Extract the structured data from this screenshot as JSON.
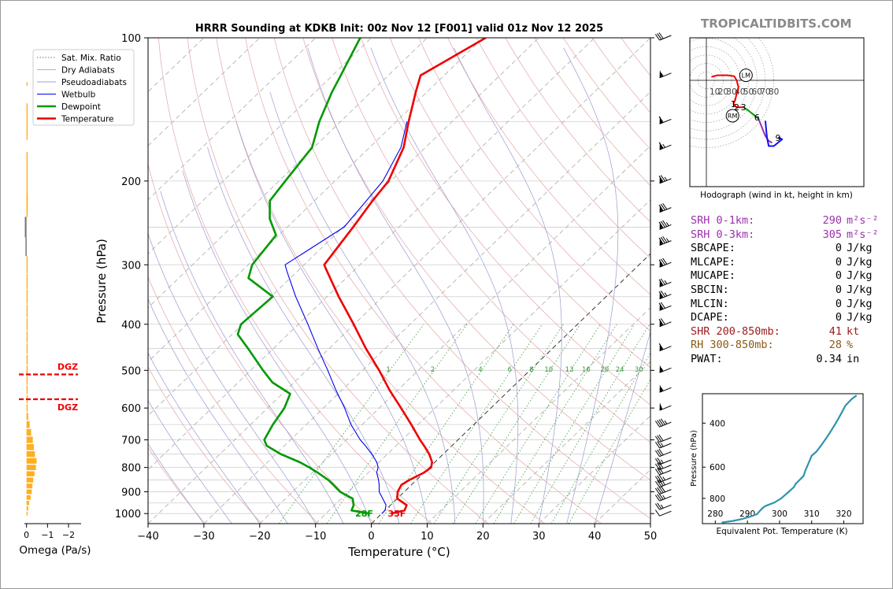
{
  "branding": "TROPICALTIDBITS.COM",
  "chart_data": [
    {
      "type": "line",
      "subtype": "skew-t log-p sounding",
      "title": "HRRR Sounding at KDKB Init: 00z Nov 12 [F001] valid 01z Nov 12 2025",
      "xlabel": "Temperature (°C)",
      "ylabel": "Pressure (hPa)",
      "xlim": [
        -40,
        50
      ],
      "ylim": [
        1050,
        100
      ],
      "y_scale": "log",
      "x_ticks": [
        -40,
        -30,
        -20,
        -10,
        0,
        10,
        20,
        30,
        40,
        50
      ],
      "x_tick_labels": [
        "−40",
        "−30",
        "−20",
        "−10",
        "0",
        "10",
        "20",
        "30",
        "40",
        "50"
      ],
      "y_ticks": [
        1000,
        900,
        800,
        700,
        600,
        500,
        400,
        300,
        200,
        100
      ],
      "grid": true,
      "legend": {
        "placement": "top-left",
        "entries": [
          {
            "name": "Sat. Mix. Ratio",
            "color": "#2ca02c",
            "style": "dotted"
          },
          {
            "name": "Dry Adiabats",
            "color": "#e0a0a0",
            "style": "solid"
          },
          {
            "name": "Pseudoadiabats",
            "color": "#a0a0d0",
            "style": "solid"
          },
          {
            "name": "Wetbulb",
            "color": "#0000ee",
            "style": "solid"
          },
          {
            "name": "Dewpoint",
            "color": "#009900",
            "style": "solid"
          },
          {
            "name": "Temperature",
            "color": "#ee0000",
            "style": "solid"
          }
        ]
      },
      "mixing_ratio_labels": [
        "1",
        "2",
        "4",
        "6",
        "8",
        "10",
        "13",
        "16",
        "20",
        "24",
        "30",
        "36"
      ],
      "mixing_ratio_values": [
        1,
        2,
        4,
        6,
        8,
        10,
        13,
        16,
        20,
        24,
        30,
        36
      ],
      "series": [
        {
          "name": "Temperature",
          "color": "#ee0000",
          "pressure": [
            1000,
            985,
            960,
            930,
            900,
            870,
            850,
            820,
            800,
            780,
            750,
            720,
            700,
            650,
            600,
            550,
            500,
            450,
            400,
            350,
            310,
            300,
            250,
            220,
            200,
            170,
            150,
            130,
            120,
            100
          ],
          "temperature": [
            1.7,
            3.5,
            2.9,
            0.0,
            -1.2,
            -1.8,
            -1.3,
            0.0,
            0.3,
            -0.5,
            -2.5,
            -5.0,
            -6.8,
            -11.2,
            -16.1,
            -21.5,
            -27.0,
            -33.4,
            -40.1,
            -47.9,
            -54.6,
            -56.4,
            -58.2,
            -59.6,
            -60.4,
            -63.9,
            -67.8,
            -72.0,
            -74.2,
            -69.5
          ]
        },
        {
          "name": "Dewpoint",
          "color": "#009900",
          "pressure": [
            1000,
            985,
            960,
            930,
            900,
            870,
            850,
            820,
            800,
            780,
            750,
            720,
            700,
            650,
            600,
            560,
            530,
            500,
            450,
            420,
            400,
            350,
            320,
            300,
            260,
            240,
            220,
            200,
            170,
            150,
            130,
            120,
            100
          ],
          "temperature": [
            -2.3,
            -6.0,
            -6.6,
            -8.0,
            -11.5,
            -14.0,
            -15.8,
            -19.1,
            -21.5,
            -24.2,
            -29.1,
            -33.2,
            -34.7,
            -36.0,
            -37.0,
            -38.6,
            -43.9,
            -47.8,
            -54.5,
            -59.0,
            -60.3,
            -59.7,
            -67.5,
            -69.3,
            -70.5,
            -74.7,
            -78.0,
            -78.9,
            -80.3,
            -83.8,
            -87.0,
            -88.5,
            -92.0
          ]
        },
        {
          "name": "Wetbulb",
          "color": "#0000ee",
          "pressure": [
            1000,
            985,
            960,
            930,
            900,
            870,
            850,
            820,
            800,
            780,
            750,
            720,
            700,
            650,
            600,
            550,
            500,
            450,
            400,
            350,
            310,
            300,
            250,
            220,
            200,
            170,
            150
          ],
          "temperature": [
            0.0,
            0.0,
            -0.8,
            -2.6,
            -4.5,
            -5.8,
            -6.8,
            -8.5,
            -9.2,
            -10.4,
            -12.8,
            -15.5,
            -17.5,
            -22.0,
            -26.2,
            -31.1,
            -36.2,
            -42.0,
            -48.3,
            -55.6,
            -61.8,
            -63.4,
            -59.8,
            -60.7,
            -61.4,
            -64.4,
            -68.1
          ]
        }
      ],
      "annotations": [
        {
          "text": "28F",
          "color": "#009900"
        },
        {
          "text": "35F",
          "color": "#ee0000"
        }
      ],
      "wind_barbs": {
        "pressure": [
          1000,
          970,
          930,
          900,
          870,
          850,
          820,
          800,
          780,
          750,
          720,
          700,
          650,
          600,
          550,
          500,
          450,
          400,
          370,
          350,
          330,
          300,
          270,
          250,
          230,
          200,
          170,
          150,
          120,
          100
        ],
        "speed_kt": [
          10,
          25,
          35,
          40,
          35,
          35,
          30,
          30,
          25,
          30,
          25,
          30,
          45,
          50,
          55,
          55,
          60,
          70,
          70,
          75,
          75,
          80,
          85,
          85,
          80,
          75,
          65,
          60,
          55,
          30
        ]
      }
    },
    {
      "type": "bar",
      "subtype": "vertical profile",
      "xlabel": "Omega (Pa/s)",
      "x_tick_labels": [
        "0",
        "−1",
        "−2"
      ],
      "xlim": [
        0.1,
        -2.6
      ],
      "levels_hpa": [
        1000,
        975,
        950,
        925,
        900,
        875,
        850,
        825,
        800,
        775,
        750,
        725,
        700,
        675,
        650,
        625,
        600,
        575,
        550,
        525,
        500,
        475,
        450,
        425,
        400,
        375,
        350,
        325,
        300,
        275,
        250,
        225,
        200,
        150,
        125
      ],
      "values": [
        -0.02,
        -0.08,
        -0.12,
        -0.2,
        -0.25,
        -0.28,
        -0.32,
        -0.38,
        -0.45,
        -0.48,
        -0.4,
        -0.35,
        -0.3,
        -0.22,
        -0.15,
        -0.08,
        -0.04,
        -0.02,
        -0.03,
        -0.05,
        -0.06,
        -0.06,
        -0.05,
        -0.04,
        -0.03,
        -0.02,
        -0.04,
        -0.03,
        -0.02,
        0.05,
        0.08,
        -0.01,
        -0.01,
        -0.01,
        -0.01
      ],
      "dgz": [
        {
          "label": "DGZ",
          "pressure": 510
        },
        {
          "label": "DGZ",
          "pressure": 575
        }
      ]
    },
    {
      "type": "line",
      "subtype": "hodograph",
      "caption": "Hodograph (wind in kt, height in km)",
      "ring_labels": [
        "10",
        "20",
        "30",
        "40",
        "50",
        "60",
        "70",
        "80"
      ],
      "ring_values": [
        10,
        20,
        30,
        40,
        50,
        60,
        70,
        80
      ],
      "height_labels": [
        "1",
        "2",
        "3",
        "6",
        "9"
      ],
      "storm_motion_labels": [
        "LM",
        "RM"
      ],
      "segments": [
        {
          "color": "#ee0000",
          "u": [
            6,
            13,
            25,
            33,
            36,
            38,
            36,
            34,
            32
          ],
          "v": [
            4,
            6,
            6,
            5,
            0,
            -8,
            -16,
            -24,
            -28
          ]
        },
        {
          "color": "#ee0000",
          "u": [
            32,
            34,
            36,
            40,
            44
          ],
          "v": [
            -28,
            -30,
            -32,
            -32,
            -32
          ]
        },
        {
          "color": "#009900",
          "u": [
            44,
            50,
            55,
            60,
            62
          ],
          "v": [
            -32,
            -36,
            -40,
            -44,
            -46
          ]
        },
        {
          "color": "#9b2fae",
          "u": [
            62,
            66,
            70,
            74,
            78
          ],
          "v": [
            -46,
            -56,
            -66,
            -72,
            -74
          ]
        },
        {
          "color": "#1111ee",
          "u": [
            70,
            72,
            74,
            80,
            90,
            86,
            88
          ],
          "v": [
            -48,
            -68,
            -78,
            -78,
            -70,
            -68,
            -70
          ]
        }
      ],
      "labelled_points": [
        {
          "label": "1",
          "u": 32,
          "v": -28
        },
        {
          "label": "2",
          "u": 36,
          "v": -32
        },
        {
          "label": "3",
          "u": 44,
          "v": -32
        },
        {
          "label": "6",
          "u": 60,
          "v": -44
        },
        {
          "label": "9",
          "u": 85,
          "v": -68
        }
      ],
      "storm_motion": [
        {
          "label": "LM",
          "u": 47,
          "v": 6
        },
        {
          "label": "RM",
          "u": 31,
          "v": -42
        }
      ]
    },
    {
      "type": "line",
      "subtype": "theta-e profile",
      "xlabel": "Equivalent Pot. Temperature (K)",
      "ylabel": "Pressure (hPa)",
      "xlim": [
        276,
        326
      ],
      "ylim": [
        1010,
        305
      ],
      "x_ticks": [
        280,
        290,
        300,
        310,
        320
      ],
      "y_ticks": [
        400,
        600,
        800
      ],
      "series": [
        {
          "name": "Theta-E",
          "color": "#2e94ae",
          "pressure": [
            1000,
            985,
            970,
            950,
            925,
            900,
            880,
            860,
            850,
            830,
            800,
            780,
            750,
            720,
            700,
            680,
            650,
            620,
            600,
            580,
            560,
            540,
            520,
            500,
            480,
            460,
            440,
            420,
            400,
            380,
            360,
            340,
            330,
            320,
            310
          ],
          "theta_e": [
            282.0,
            285.5,
            288.0,
            290.5,
            293.0,
            293.8,
            294.5,
            295.5,
            296.5,
            298.5,
            300.5,
            301.5,
            303.0,
            304.5,
            305.0,
            306.0,
            307.5,
            308.0,
            308.5,
            309.0,
            309.5,
            310.0,
            311.5,
            312.5,
            313.5,
            314.5,
            315.5,
            316.5,
            317.5,
            318.5,
            319.5,
            320.5,
            321.5,
            322.5,
            324.0
          ]
        }
      ]
    }
  ],
  "indices": [
    {
      "label": "SRH 0-1km:",
      "value": "290",
      "unit": "m²s⁻²",
      "color": "#9b2fae"
    },
    {
      "label": "SRH 0-3km:",
      "value": "305",
      "unit": "m²s⁻²",
      "color": "#9b2fae"
    },
    {
      "label": "SBCAPE:",
      "value": "0",
      "unit": "J/kg",
      "color": "#000000"
    },
    {
      "label": "MLCAPE:",
      "value": "0",
      "unit": "J/kg",
      "color": "#000000"
    },
    {
      "label": "MUCAPE:",
      "value": "0",
      "unit": "J/kg",
      "color": "#000000"
    },
    {
      "label": "SBCIN:",
      "value": "0",
      "unit": "J/kg",
      "color": "#000000"
    },
    {
      "label": "MLCIN:",
      "value": "0",
      "unit": "J/kg",
      "color": "#000000"
    },
    {
      "label": "DCAPE:",
      "value": "0",
      "unit": "J/kg",
      "color": "#000000"
    },
    {
      "label": "SHR 200-850mb:",
      "value": "41",
      "unit": "kt",
      "color": "#9b1a1a"
    },
    {
      "label": "RH 300-850mb:",
      "value": "28",
      "unit": "%",
      "color": "#8b5a14"
    },
    {
      "label": "PWAT:",
      "value": "0.34",
      "unit": "in",
      "color": "#000000"
    }
  ]
}
